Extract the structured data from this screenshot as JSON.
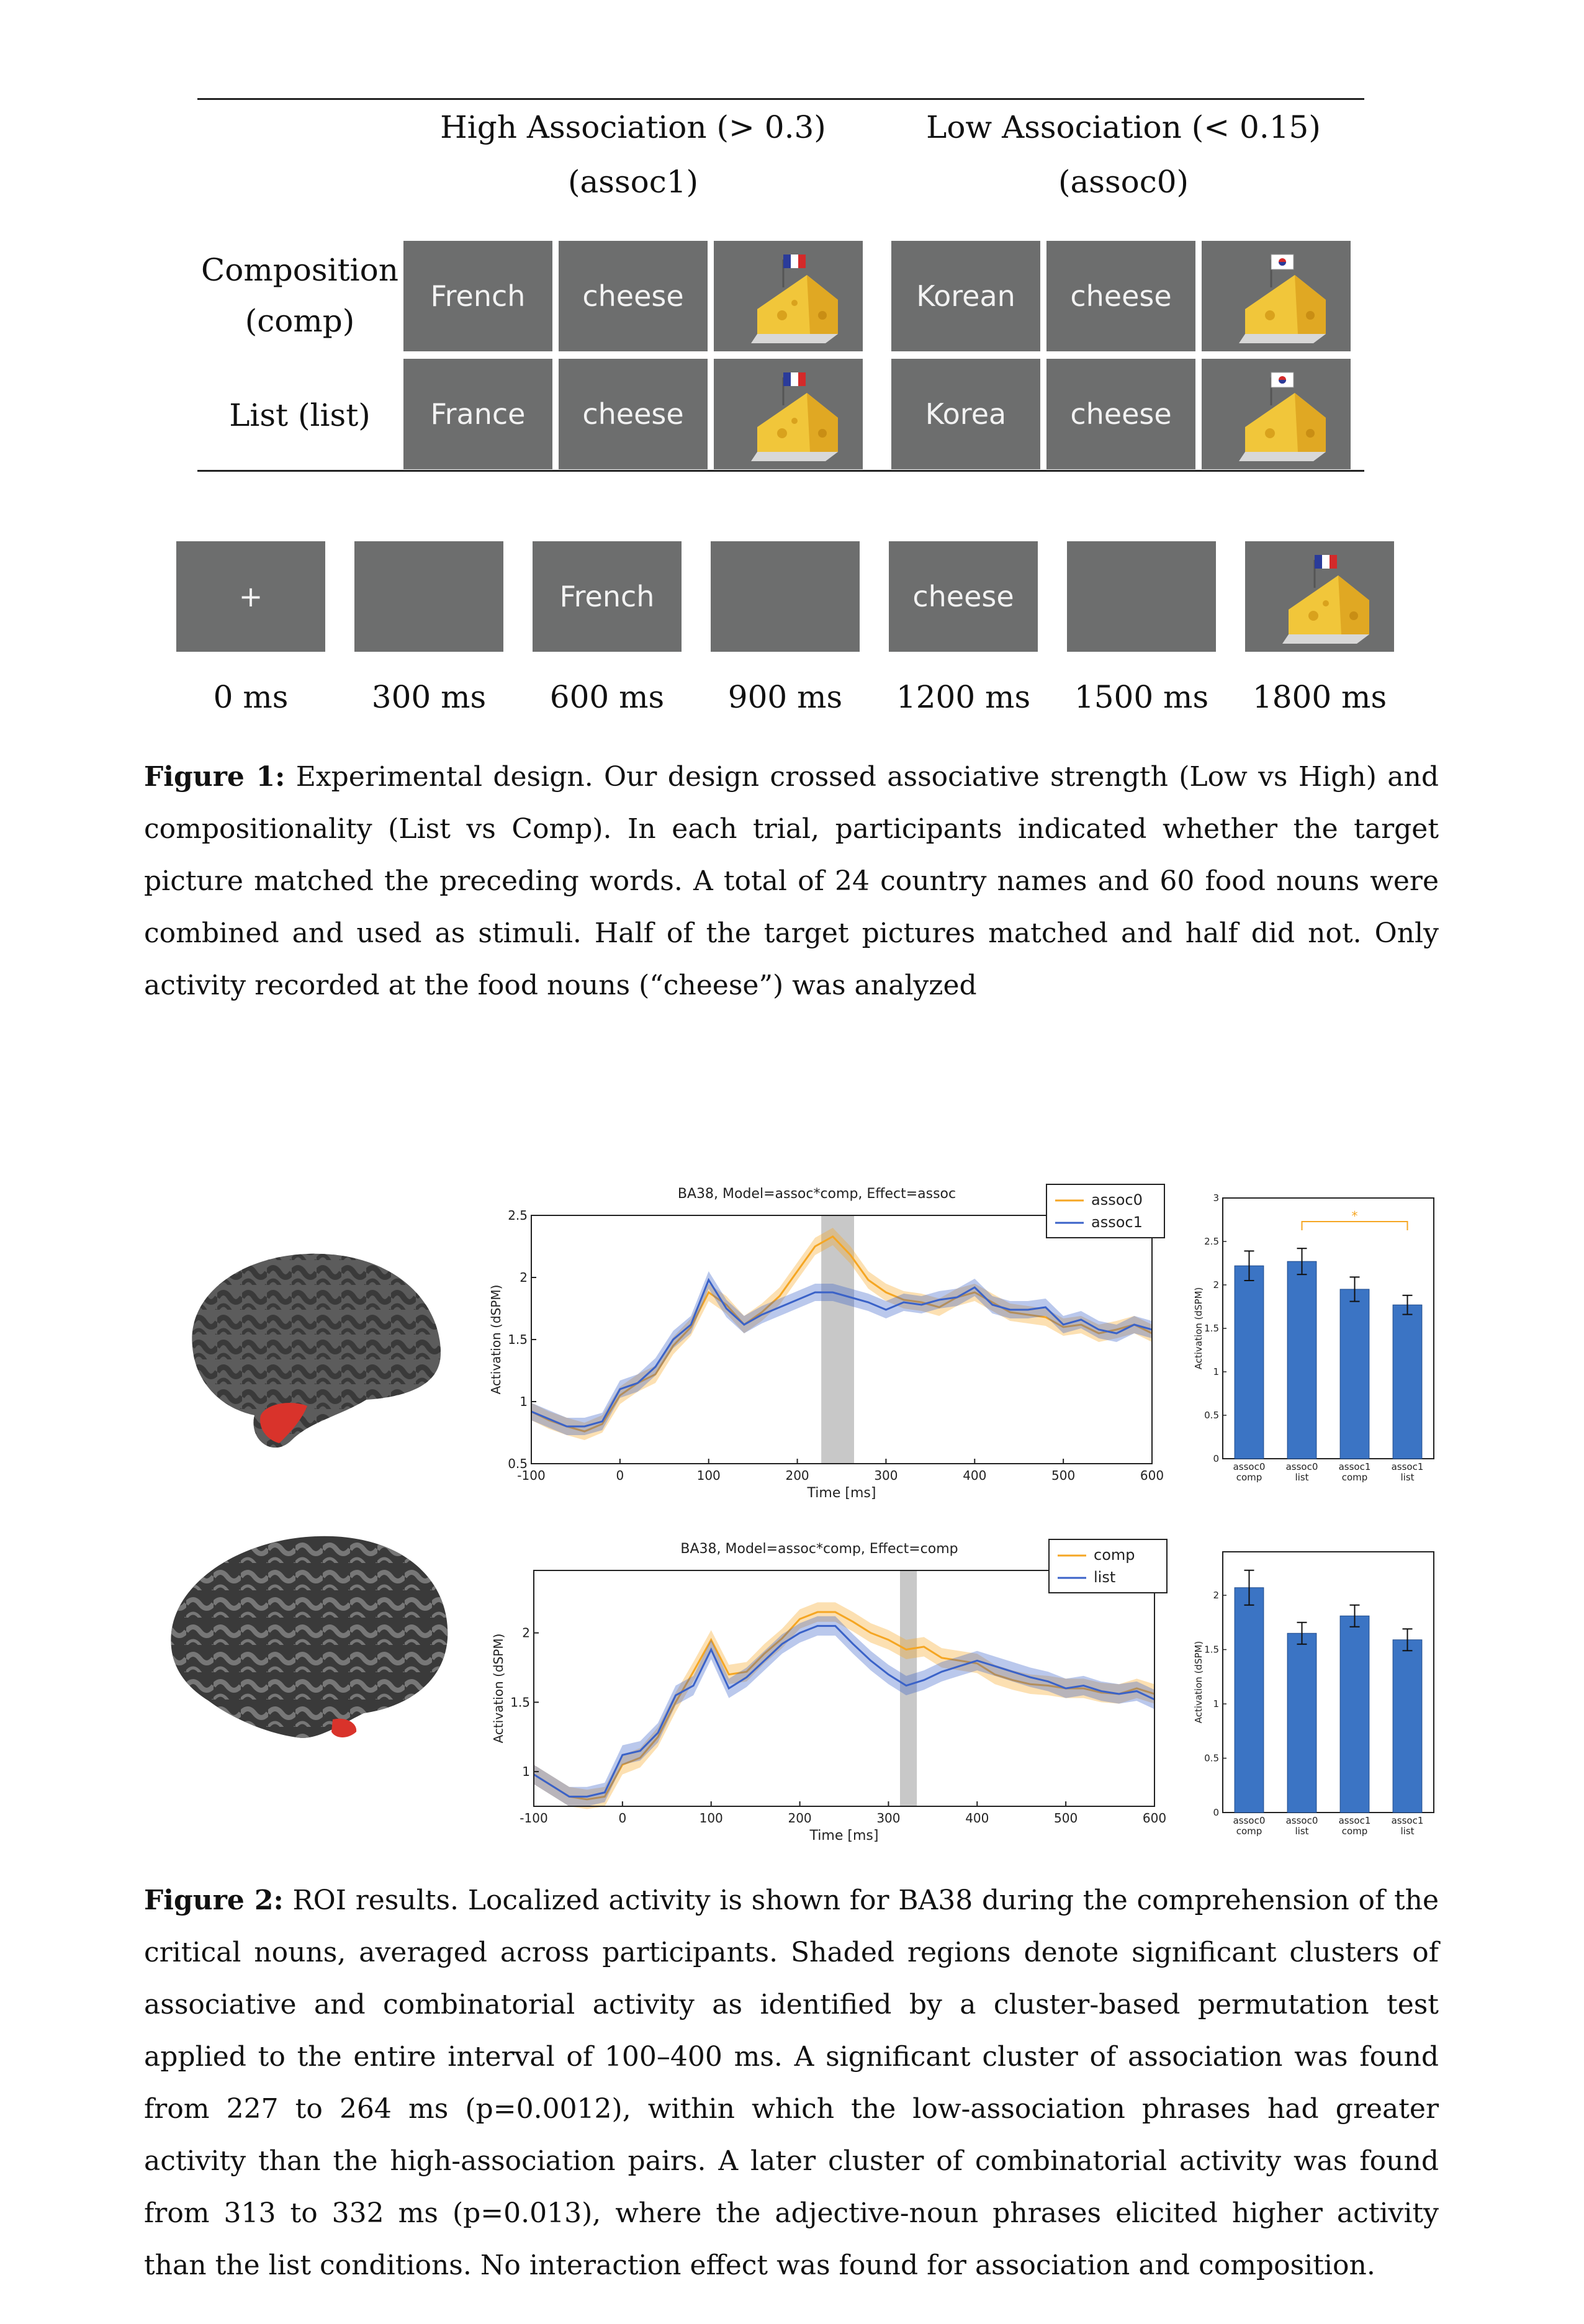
{
  "fig1": {
    "col_headers": [
      {
        "title": "High Association (> 0.3)",
        "sub": "(assoc1)"
      },
      {
        "title": "Low Association (< 0.15)",
        "sub": "(assoc0)"
      }
    ],
    "row_labels": [
      {
        "line1": "Composition",
        "line2": "(comp)"
      },
      {
        "line1": "List (list)"
      }
    ],
    "grid": [
      [
        "French",
        "cheese",
        "Korean",
        "cheese"
      ],
      [
        "France",
        "cheese",
        "Korea",
        "cheese"
      ]
    ],
    "flags": [
      "france-flag",
      "korea-flag"
    ],
    "timeline": {
      "cells": [
        "+",
        "",
        "French",
        "",
        "cheese",
        "",
        ""
      ],
      "times": [
        "0 ms",
        "300 ms",
        "600 ms",
        "900 ms",
        "1200 ms",
        "1500 ms",
        "1800 ms"
      ]
    },
    "caption_label": "Figure 1:",
    "caption_text": "Experimental design. Our design crossed associative strength (Low vs High) and compositionality (List vs Comp). In each trial, participants indicated whether the target picture matched the preceding words. A total of 24 country names and 60 food nouns were combined and used as stimuli. Half of the target pictures matched and half did not. Only activity recorded at the food nouns (“cheese”) was analyzed"
  },
  "fig2": {
    "caption_label": "Figure 2:",
    "caption_text": "ROI results. Localized activity is shown for BA38 during the comprehension of the critical nouns, averaged across participants. Shaded regions denote significant clusters of associative and combinatorial activity as identified by a cluster-based permutation test applied to the entire interval of 100–400 ms. A significant cluster of association was found from 227 to 264 ms (p=0.0012), within which the low-association phrases had greater activity than the high-association pairs. A later cluster of combinatorial activity was found from 313 to 332 ms (p=0.013), where the adjective-noun phrases elicited higher activity than the list conditions. No interaction effect was found for association and composition."
  },
  "chart_data": [
    {
      "type": "line",
      "title": "BA38, Model=assoc*comp, Effect=assoc",
      "xlabel": "Time [ms]",
      "ylabel": "Activation (dSPM)",
      "xlim": [
        -100,
        600
      ],
      "ylim": [
        0.5,
        2.5
      ],
      "xticks": [
        "-100",
        "0",
        "100",
        "200",
        "300",
        "400",
        "500",
        "600"
      ],
      "yticks": [
        "0.5",
        "1",
        "1.5",
        "2",
        "2.5"
      ],
      "legend_position": "top-right",
      "shaded_cluster": [
        227,
        264
      ],
      "x": [
        -100,
        -80,
        -60,
        -40,
        -20,
        0,
        20,
        40,
        60,
        80,
        100,
        120,
        140,
        160,
        180,
        200,
        220,
        240,
        260,
        280,
        300,
        320,
        340,
        360,
        380,
        400,
        420,
        440,
        460,
        480,
        500,
        520,
        540,
        560,
        580,
        600
      ],
      "series": [
        {
          "name": "assoc0",
          "color": "#f5a623",
          "values": [
            0.92,
            0.85,
            0.8,
            0.76,
            0.82,
            1.05,
            1.15,
            1.22,
            1.45,
            1.6,
            1.88,
            1.78,
            1.62,
            1.72,
            1.85,
            2.05,
            2.25,
            2.33,
            2.18,
            1.98,
            1.88,
            1.82,
            1.8,
            1.76,
            1.84,
            1.88,
            1.8,
            1.72,
            1.7,
            1.68,
            1.6,
            1.62,
            1.55,
            1.58,
            1.62,
            1.55
          ]
        },
        {
          "name": "assoc1",
          "color": "#3a62c8",
          "values": [
            0.92,
            0.86,
            0.8,
            0.8,
            0.84,
            1.1,
            1.15,
            1.28,
            1.5,
            1.62,
            1.98,
            1.75,
            1.62,
            1.7,
            1.76,
            1.82,
            1.88,
            1.88,
            1.84,
            1.8,
            1.74,
            1.8,
            1.78,
            1.82,
            1.84,
            1.92,
            1.78,
            1.74,
            1.74,
            1.76,
            1.62,
            1.66,
            1.58,
            1.55,
            1.62,
            1.58
          ]
        }
      ]
    },
    {
      "type": "bar",
      "categories": [
        "assoc0 comp",
        "assoc0 list",
        "assoc1 comp",
        "assoc1 list"
      ],
      "values": [
        2.22,
        2.27,
        1.95,
        1.77
      ],
      "errors": [
        0.17,
        0.15,
        0.14,
        0.11
      ],
      "ylabel": "Activation (dSPM)",
      "ylim": [
        0,
        3
      ],
      "yticks": [
        "0",
        "0.5",
        "1",
        "1.5",
        "2",
        "2.5",
        "3"
      ],
      "significance": {
        "from": 1,
        "to": 3,
        "label": "*"
      }
    },
    {
      "type": "line",
      "title": "BA38, Model=assoc*comp, Effect=comp",
      "xlabel": "Time [ms]",
      "ylabel": "Activation (dSPM)",
      "xlim": [
        -100,
        600
      ],
      "ylim": [
        0.75,
        2.45
      ],
      "xticks": [
        "-100",
        "0",
        "100",
        "200",
        "300",
        "400",
        "500",
        "600"
      ],
      "yticks": [
        "1",
        "1.5",
        "2"
      ],
      "legend_position": "top-right",
      "shaded_cluster": [
        313,
        332
      ],
      "x": [
        -100,
        -80,
        -60,
        -40,
        -20,
        0,
        20,
        40,
        60,
        80,
        100,
        120,
        140,
        160,
        180,
        200,
        220,
        240,
        260,
        280,
        300,
        320,
        340,
        360,
        380,
        400,
        420,
        440,
        460,
        480,
        500,
        520,
        540,
        560,
        580,
        600
      ],
      "series": [
        {
          "name": "comp",
          "color": "#f5a623",
          "values": [
            0.98,
            0.9,
            0.82,
            0.8,
            0.82,
            1.05,
            1.1,
            1.25,
            1.5,
            1.72,
            1.95,
            1.7,
            1.72,
            1.85,
            1.96,
            2.1,
            2.15,
            2.15,
            2.08,
            2.0,
            1.95,
            1.88,
            1.9,
            1.82,
            1.8,
            1.78,
            1.7,
            1.66,
            1.63,
            1.62,
            1.6,
            1.6,
            1.57,
            1.56,
            1.6,
            1.56
          ]
        },
        {
          "name": "list",
          "color": "#3a62c8",
          "values": [
            0.98,
            0.9,
            0.82,
            0.82,
            0.85,
            1.12,
            1.15,
            1.28,
            1.55,
            1.62,
            1.88,
            1.6,
            1.68,
            1.8,
            1.92,
            2.0,
            2.05,
            2.05,
            1.92,
            1.8,
            1.7,
            1.62,
            1.66,
            1.72,
            1.76,
            1.8,
            1.76,
            1.72,
            1.68,
            1.65,
            1.6,
            1.62,
            1.58,
            1.56,
            1.58,
            1.52
          ]
        }
      ]
    },
    {
      "type": "bar",
      "categories": [
        "assoc0 comp",
        "assoc0 list",
        "assoc1 comp",
        "assoc1 list"
      ],
      "values": [
        2.07,
        1.65,
        1.81,
        1.59
      ],
      "errors": [
        0.16,
        0.1,
        0.1,
        0.1
      ],
      "ylabel": "Activation (dSPM)",
      "ylim": [
        0,
        2.4
      ],
      "yticks": [
        "0",
        "0.5",
        "1",
        "1.5",
        "2"
      ]
    }
  ]
}
